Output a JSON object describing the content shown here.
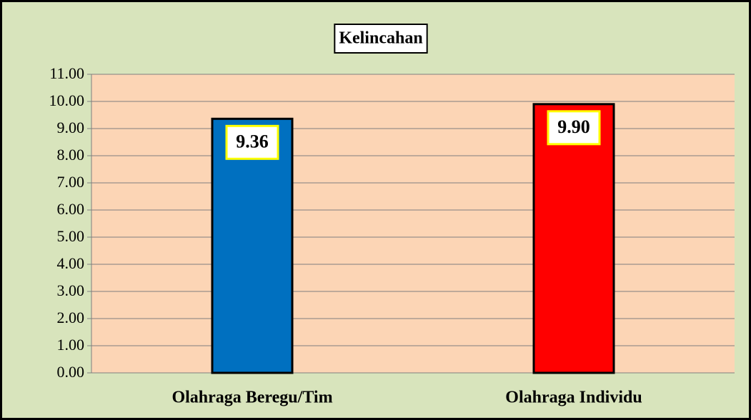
{
  "chart_data": {
    "type": "bar",
    "title": "Kelincahan",
    "categories": [
      "Olahraga Beregu/Tim",
      "Olahraga Individu"
    ],
    "values": [
      9.36,
      9.9
    ],
    "value_labels": [
      "9.36",
      "9.90"
    ],
    "colors": [
      "#0070c0",
      "#ff0000"
    ],
    "ylim": [
      0,
      11
    ],
    "yticks": [
      {
        "value": 0,
        "label": "0.00"
      },
      {
        "value": 1,
        "label": "1.00"
      },
      {
        "value": 2,
        "label": "2.00"
      },
      {
        "value": 3,
        "label": "3.00"
      },
      {
        "value": 4,
        "label": "4.00"
      },
      {
        "value": 5,
        "label": "5.00"
      },
      {
        "value": 6,
        "label": "6.00"
      },
      {
        "value": 7,
        "label": "7.00"
      },
      {
        "value": 8,
        "label": "8.00"
      },
      {
        "value": 9,
        "label": "9.00"
      },
      {
        "value": 10,
        "label": "10.00"
      },
      {
        "value": 11,
        "label": "11.00"
      }
    ],
    "grid": true
  }
}
